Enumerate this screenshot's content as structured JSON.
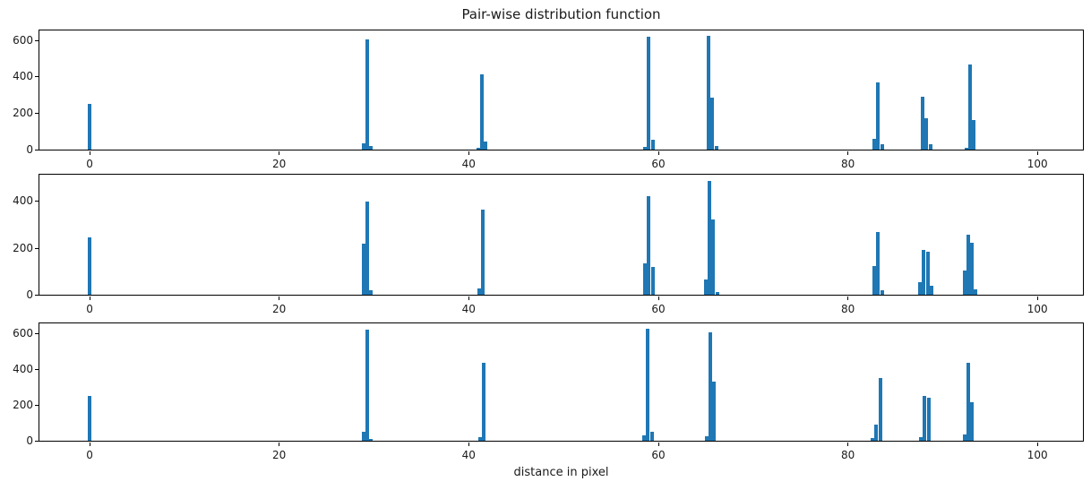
{
  "colors": {
    "bar": "#1f77b4",
    "axis": "#000000",
    "text": "#1a1a1a",
    "background": "#ffffff"
  },
  "chart_data": {
    "type": "bar",
    "title": "Pair-wise distribution function",
    "xlabel": "distance in pixel",
    "ylabel": "",
    "grid": false,
    "legend": null,
    "bin_width": 0.42,
    "xlim": [
      -5.3,
      104.8
    ],
    "xticks": [
      0,
      20,
      40,
      60,
      80,
      100
    ],
    "subplots": [
      {
        "name": "top",
        "ylim": [
          0,
          655
        ],
        "yticks": [
          0,
          200,
          400,
          600
        ],
        "bars": [
          [
            0.0,
            250
          ],
          [
            28.9,
            35
          ],
          [
            29.3,
            608
          ],
          [
            29.7,
            22
          ],
          [
            41.0,
            12
          ],
          [
            41.4,
            412
          ],
          [
            41.8,
            45
          ],
          [
            58.6,
            15
          ],
          [
            59.0,
            620
          ],
          [
            59.4,
            52
          ],
          [
            65.3,
            624
          ],
          [
            65.7,
            285
          ],
          [
            66.1,
            18
          ],
          [
            82.8,
            58
          ],
          [
            83.2,
            368
          ],
          [
            83.6,
            28
          ],
          [
            87.9,
            290
          ],
          [
            88.3,
            172
          ],
          [
            88.7,
            28
          ],
          [
            92.5,
            12
          ],
          [
            92.9,
            468
          ],
          [
            93.3,
            165
          ]
        ]
      },
      {
        "name": "middle",
        "ylim": [
          0,
          515
        ],
        "yticks": [
          0,
          200,
          400
        ],
        "bars": [
          [
            0.0,
            245
          ],
          [
            28.9,
            220
          ],
          [
            29.3,
            400
          ],
          [
            29.7,
            20
          ],
          [
            41.1,
            28
          ],
          [
            41.5,
            365
          ],
          [
            58.6,
            133
          ],
          [
            59.0,
            423
          ],
          [
            59.4,
            121
          ],
          [
            65.0,
            64
          ],
          [
            65.4,
            490
          ],
          [
            65.8,
            322
          ],
          [
            66.2,
            12
          ],
          [
            82.8,
            125
          ],
          [
            83.2,
            268
          ],
          [
            83.6,
            18
          ],
          [
            87.6,
            55
          ],
          [
            88.0,
            192
          ],
          [
            88.4,
            183
          ],
          [
            88.8,
            40
          ],
          [
            92.3,
            103
          ],
          [
            92.7,
            258
          ],
          [
            93.1,
            225
          ],
          [
            93.5,
            22
          ]
        ]
      },
      {
        "name": "bottom",
        "ylim": [
          0,
          656
        ],
        "yticks": [
          0,
          200,
          400,
          600
        ],
        "bars": [
          [
            0.0,
            250
          ],
          [
            28.9,
            50
          ],
          [
            29.3,
            622
          ],
          [
            29.7,
            12
          ],
          [
            41.2,
            20
          ],
          [
            41.6,
            436
          ],
          [
            58.5,
            32
          ],
          [
            58.9,
            625
          ],
          [
            59.3,
            50
          ],
          [
            65.1,
            25
          ],
          [
            65.5,
            607
          ],
          [
            65.9,
            330
          ],
          [
            82.6,
            15
          ],
          [
            83.0,
            88
          ],
          [
            83.4,
            352
          ],
          [
            87.7,
            20
          ],
          [
            88.1,
            250
          ],
          [
            88.5,
            242
          ],
          [
            92.3,
            35
          ],
          [
            92.7,
            438
          ],
          [
            93.1,
            215
          ]
        ]
      }
    ]
  }
}
